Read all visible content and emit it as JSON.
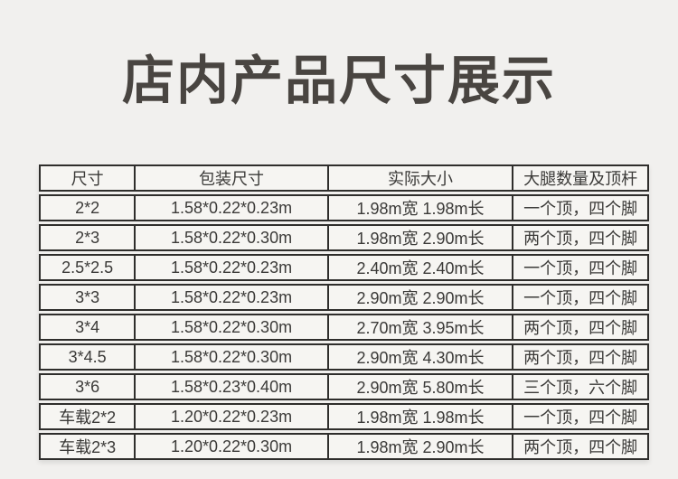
{
  "page": {
    "title": "店内产品尺寸展示"
  },
  "colors": {
    "background": "#f1f0ee",
    "cell_background": "#f6f5f2",
    "border": "#2f2e2c",
    "text": "#3b3a38",
    "title_text": "#494541"
  },
  "table": {
    "headers": [
      "尺寸",
      "包装尺寸",
      "实际大小",
      "大腿数量及顶杆"
    ],
    "rows": [
      [
        "2*2",
        "1.58*0.22*0.23m",
        "1.98m宽 1.98m长",
        "一个顶，四个脚"
      ],
      [
        "2*3",
        "1.58*0.22*0.30m",
        "1.98m宽 2.90m长",
        "两个顶，四个脚"
      ],
      [
        "2.5*2.5",
        "1.58*0.22*0.23m",
        "2.40m宽 2.40m长",
        "一个顶，四个脚"
      ],
      [
        "3*3",
        "1.58*0.22*0.23m",
        "2.90m宽 2.90m长",
        "一个顶，四个脚"
      ],
      [
        "3*4",
        "1.58*0.22*0.30m",
        "2.70m宽 3.95m长",
        "两个顶，四个脚"
      ],
      [
        "3*4.5",
        "1.58*0.22*0.30m",
        "2.90m宽 4.30m长",
        "两个顶，四个脚"
      ],
      [
        "3*6",
        "1.58*0.23*0.40m",
        "2.90m宽 5.80m长",
        "三个顶，六个脚"
      ],
      [
        "车载2*2",
        "1.20*0.22*0.23m",
        "1.98m宽 1.98m长",
        "一个顶，四个脚"
      ],
      [
        "车载2*3",
        "1.20*0.22*0.30m",
        "1.98m宽 2.90m长",
        "两个顶，四个脚"
      ]
    ]
  }
}
